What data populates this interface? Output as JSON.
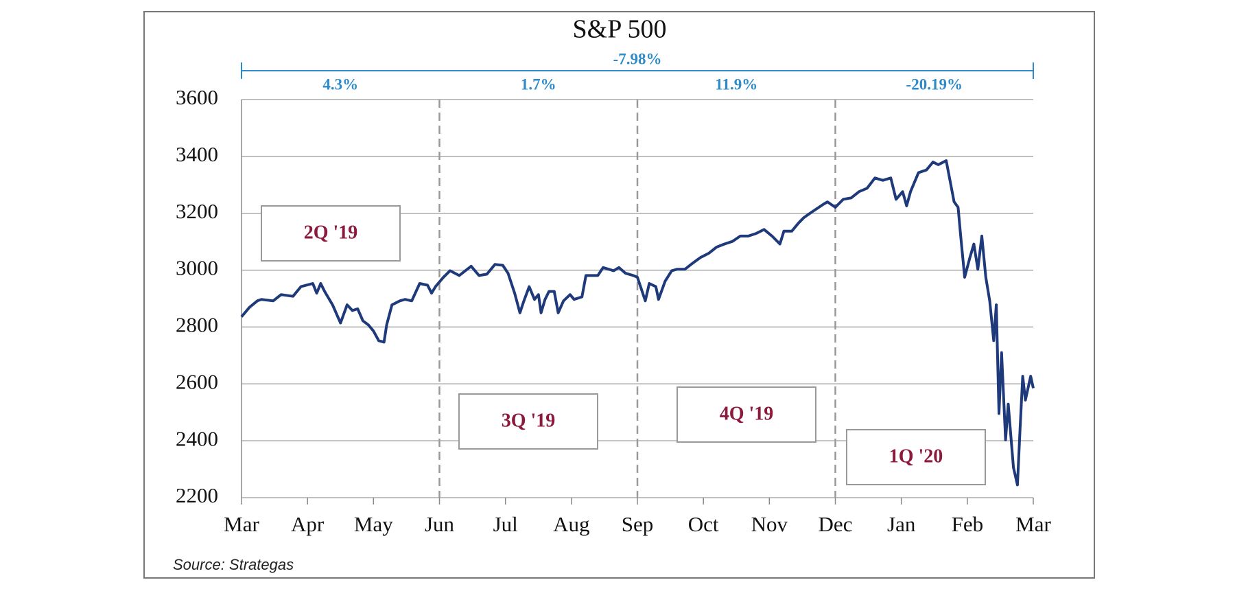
{
  "chart_data": {
    "type": "line",
    "title": "S&P 500",
    "source": "Source: Strategas",
    "xlim": [
      0,
      12
    ],
    "xticks": [
      {
        "value": 0,
        "label": "Mar"
      },
      {
        "value": 1,
        "label": "Apr"
      },
      {
        "value": 2,
        "label": "May"
      },
      {
        "value": 3,
        "label": "Jun"
      },
      {
        "value": 4,
        "label": "Jul"
      },
      {
        "value": 5,
        "label": "Aug"
      },
      {
        "value": 6,
        "label": "Sep"
      },
      {
        "value": 7,
        "label": "Oct"
      },
      {
        "value": 8,
        "label": "Nov"
      },
      {
        "value": 9,
        "label": "Dec"
      },
      {
        "value": 10,
        "label": "Jan"
      },
      {
        "value": 11,
        "label": "Feb"
      },
      {
        "value": 12,
        "label": "Mar"
      }
    ],
    "ylim": [
      2200,
      3600
    ],
    "yticks": [
      2200,
      2400,
      2600,
      2800,
      3000,
      3200,
      3400,
      3600
    ],
    "grid": true,
    "quarter_lines": [
      3,
      6,
      9
    ],
    "total_return": "-7.98%",
    "quarters": [
      {
        "label": "2Q '19",
        "return": "4.3%"
      },
      {
        "label": "3Q '19",
        "return": "1.7%"
      },
      {
        "label": "4Q '19",
        "return": "11.9%"
      },
      {
        "label": "1Q '20",
        "return": "-20.19%"
      }
    ],
    "series": [
      {
        "name": "S&P 500",
        "color": "#1f3a7a",
        "x": [
          0,
          0.12,
          0.24,
          0.3,
          0.48,
          0.6,
          0.78,
          0.9,
          1.08,
          1.14,
          1.2,
          1.26,
          1.38,
          1.5,
          1.6,
          1.68,
          1.76,
          1.84,
          1.92,
          2,
          2.08,
          2.16,
          2.2,
          2.28,
          2.4,
          2.48,
          2.58,
          2.7,
          2.82,
          2.88,
          2.94,
          3.06,
          3.16,
          3.3,
          3.48,
          3.6,
          3.72,
          3.84,
          3.96,
          4.04,
          4.14,
          4.22,
          4.28,
          4.36,
          4.44,
          4.5,
          4.54,
          4.6,
          4.66,
          4.74,
          4.8,
          4.88,
          4.98,
          5.04,
          5.16,
          5.22,
          5.4,
          5.48,
          5.64,
          5.72,
          5.82,
          5.94,
          6,
          6.12,
          6.18,
          6.28,
          6.32,
          6.42,
          6.52,
          6.6,
          6.72,
          6.84,
          6.96,
          7.08,
          7.2,
          7.32,
          7.44,
          7.56,
          7.68,
          7.8,
          7.92,
          8.04,
          8.16,
          8.22,
          8.34,
          8.44,
          8.52,
          8.64,
          8.82,
          8.88,
          9,
          9.12,
          9.24,
          9.36,
          9.48,
          9.6,
          9.72,
          9.84,
          9.92,
          10.02,
          10.08,
          10.14,
          10.26,
          10.38,
          10.48,
          10.56,
          10.68,
          10.8,
          10.86,
          10.9,
          10.96,
          11.04,
          11.1,
          11.16,
          11.22,
          11.28,
          11.34,
          11.4,
          11.44,
          11.48,
          11.52,
          11.58,
          11.62,
          11.66,
          11.7,
          11.76,
          11.8,
          11.84,
          11.88,
          11.96,
          12
        ],
        "values": [
          2836,
          2869,
          2892,
          2897,
          2892,
          2914,
          2908,
          2942,
          2953,
          2919,
          2953,
          2925,
          2878,
          2814,
          2878,
          2858,
          2864,
          2822,
          2808,
          2786,
          2752,
          2747,
          2808,
          2878,
          2892,
          2897,
          2892,
          2953,
          2947,
          2919,
          2942,
          2975,
          2998,
          2981,
          3014,
          2981,
          2986,
          3020,
          3017,
          2989,
          2919,
          2850,
          2892,
          2942,
          2897,
          2914,
          2850,
          2897,
          2925,
          2925,
          2850,
          2892,
          2914,
          2897,
          2906,
          2981,
          2981,
          3009,
          2998,
          3009,
          2989,
          2981,
          2975,
          2892,
          2953,
          2942,
          2897,
          2961,
          2998,
          3003,
          3003,
          3025,
          3045,
          3059,
          3081,
          3092,
          3101,
          3120,
          3120,
          3129,
          3143,
          3120,
          3092,
          3137,
          3137,
          3165,
          3184,
          3204,
          3232,
          3240,
          3221,
          3249,
          3254,
          3276,
          3288,
          3324,
          3316,
          3324,
          3249,
          3276,
          3226,
          3276,
          3343,
          3352,
          3380,
          3371,
          3385,
          3240,
          3221,
          3120,
          2975,
          3045,
          3092,
          3003,
          3120,
          2975,
          2892,
          2752,
          2878,
          2496,
          2710,
          2403,
          2529,
          2417,
          2306,
          2245,
          2445,
          2627,
          2543,
          2627,
          2585
        ]
      }
    ]
  }
}
